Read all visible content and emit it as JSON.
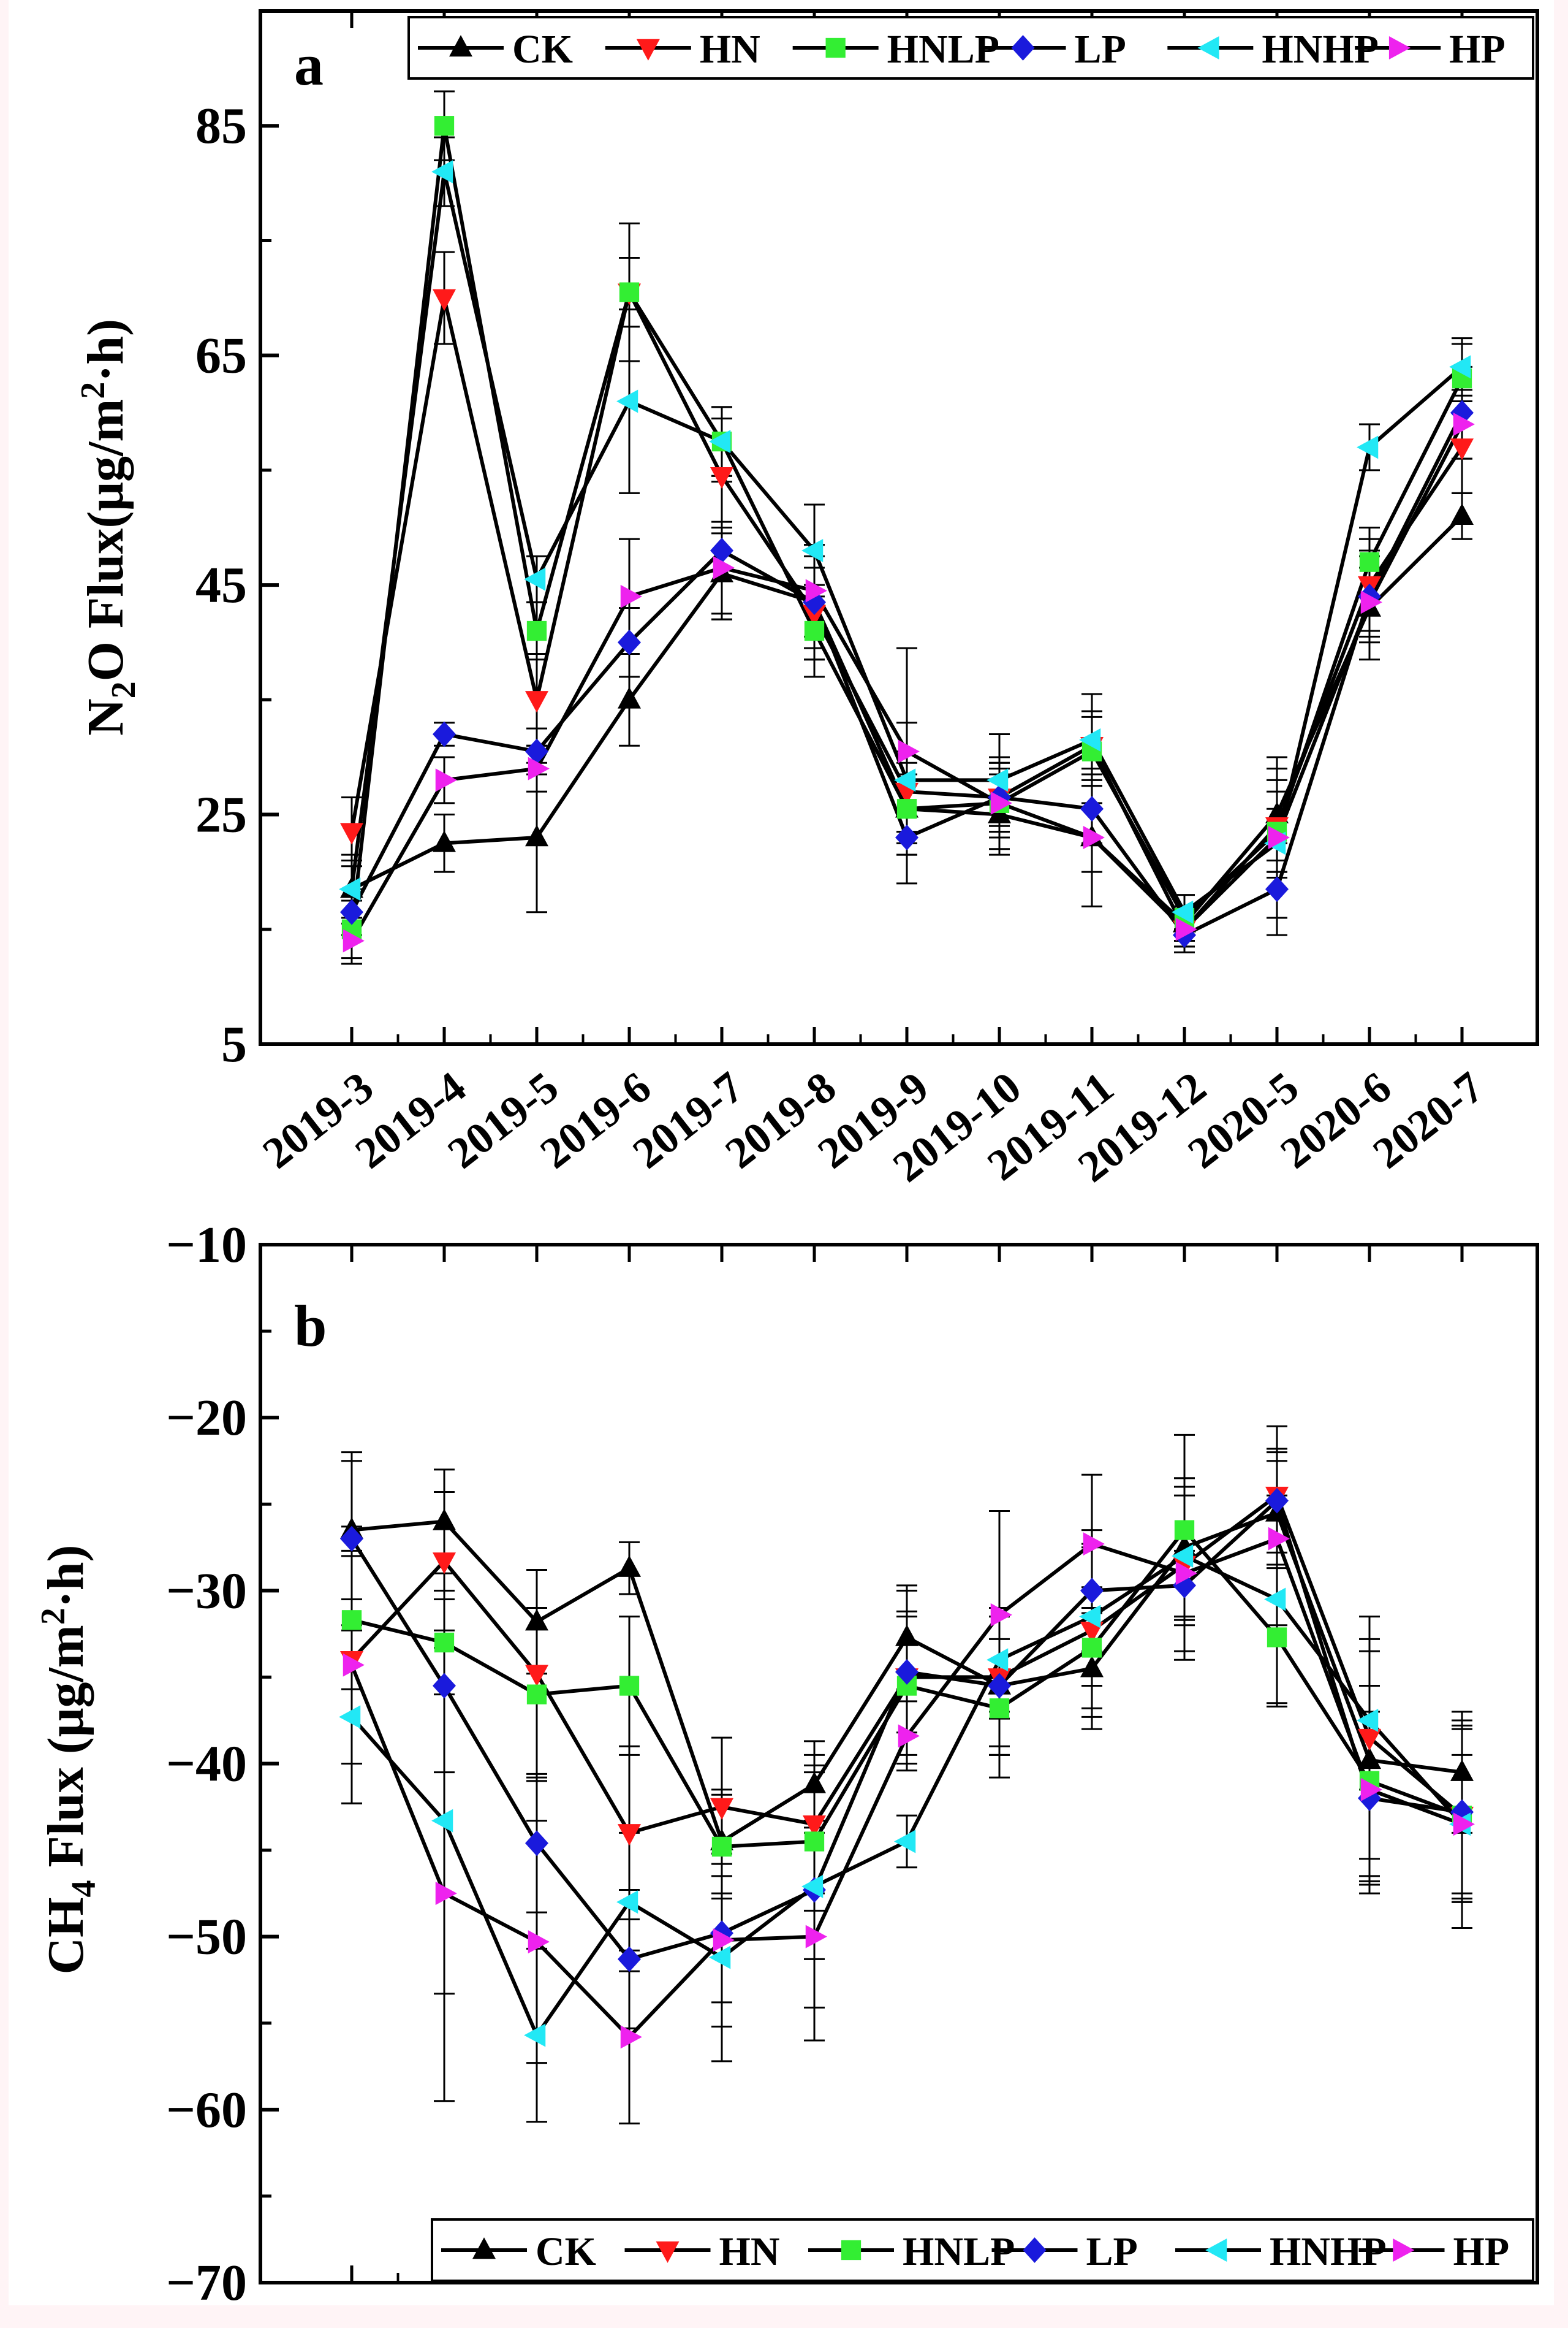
{
  "figure": {
    "panel_a_letter": "a",
    "panel_b_letter": "b"
  },
  "legend_labels": [
    "CK",
    "HN",
    "HNLP",
    "LP",
    "HNHP",
    "HP"
  ],
  "colors": {
    "CK": "#000000",
    "HN": "#ff1a1a",
    "HNLP": "#33ee33",
    "LP": "#1a1adc",
    "HNHP": "#22e8f5",
    "HP": "#ee22ee",
    "line": "#000000",
    "fringe": "#fff4f6"
  },
  "markers": {
    "CK": "triangle-up-icon",
    "HN": "triangle-down-icon",
    "HNLP": "square-icon",
    "LP": "diamond-icon",
    "HNHP": "triangle-left-icon",
    "HP": "triangle-right-icon"
  },
  "chart_data": [
    {
      "type": "line",
      "panel": "a",
      "title": "",
      "ylabel_main": "N",
      "ylabel_sub": "2",
      "ylabel_rest": "O Flux(μg/m",
      "ylabel_sup": "2",
      "ylabel_end": "·h)",
      "xlabel": "",
      "categories": [
        "2019-3",
        "2019-4",
        "2019-5",
        "2019-6",
        "2019-7",
        "2019-8",
        "2019-9",
        "2019-10",
        "2019-11",
        "2019-12",
        "2020-5",
        "2020-6",
        "2020-7"
      ],
      "ylim": [
        5,
        95
      ],
      "yticks": [
        5,
        25,
        45,
        65,
        85
      ],
      "ytick_labels": [
        "5",
        "25",
        "45",
        "65",
        "85"
      ],
      "legend_position": "top-right",
      "series": [
        {
          "name": "CK",
          "values": [
            18.5,
            22.5,
            23,
            35,
            46,
            43.5,
            25.5,
            25,
            23,
            15.5,
            25,
            43,
            51
          ],
          "err": [
            3,
            2.5,
            6.5,
            4,
            4,
            4,
            4,
            3.5,
            3,
            1.5,
            4,
            4.5,
            2
          ]
        },
        {
          "name": "HN",
          "values": [
            23.5,
            70,
            35,
            70.5,
            54.5,
            42.5,
            27,
            26.5,
            31,
            15,
            24,
            45,
            57
          ],
          "err": [
            3,
            4,
            4,
            6,
            5,
            4,
            3.5,
            3,
            3,
            1.5,
            4,
            4,
            4
          ]
        },
        {
          "name": "HNLP",
          "values": [
            15,
            85,
            41,
            70.5,
            57.5,
            41,
            25.5,
            26,
            30.5,
            16,
            23.5,
            47,
            63
          ],
          "err": [
            2.5,
            3,
            2.5,
            3,
            3,
            4,
            3,
            3,
            3,
            1,
            3.5,
            3,
            3
          ]
        },
        {
          "name": "LP",
          "values": [
            16.5,
            32,
            30.5,
            40,
            48,
            43.5,
            23,
            26.5,
            25.5,
            14.5,
            18.5,
            44,
            60
          ],
          "err": [
            2,
            1,
            2,
            3,
            6,
            5,
            4,
            3,
            3,
            1.5,
            4,
            4,
            4
          ]
        },
        {
          "name": "HNHP",
          "values": [
            18.5,
            81,
            45.5,
            61,
            57.5,
            48,
            28,
            28,
            31.5,
            16.5,
            22.5,
            57,
            64
          ],
          "err": [
            2.5,
            3,
            2,
            8,
            3,
            4,
            5,
            4,
            4,
            1.5,
            3,
            2,
            2.5
          ]
        },
        {
          "name": "HP",
          "values": [
            14,
            28,
            29,
            44,
            46.5,
            44.5,
            30.5,
            26,
            23,
            15,
            23,
            43.5,
            59
          ],
          "err": [
            2,
            2,
            2,
            5,
            4,
            4,
            9,
            4,
            6,
            1.5,
            7,
            3,
            3
          ]
        }
      ]
    },
    {
      "type": "line",
      "panel": "b",
      "title": "",
      "ylabel_main": "CH",
      "ylabel_sub": "4",
      "ylabel_rest": " Flux (μg/m",
      "ylabel_sup": "2",
      "ylabel_end": "·h)",
      "xlabel": "",
      "categories": [
        "2019-3",
        "2019-4",
        "2019-5",
        "2019-6",
        "2019-7",
        "2019-8",
        "2019-9",
        "2019-10",
        "2019-11",
        "2019-12",
        "2020-5",
        "2020-6",
        "2020-7"
      ],
      "ylim": [
        -70,
        -10
      ],
      "yticks": [
        -10,
        -20,
        -30,
        -40,
        -50,
        -60,
        -70
      ],
      "ytick_labels": [
        "−10",
        "−20",
        "−30",
        "−40",
        "−50",
        "−60",
        "−70"
      ],
      "legend_position": "bottom-right",
      "series": [
        {
          "name": "CK",
          "values": [
            -26.5,
            -26,
            -31.8,
            -28.7,
            -44.5,
            -41.2,
            -32.7,
            -35.5,
            -34.5,
            -27.5,
            -25.5,
            -39.8,
            -40.5
          ],
          "err": [
            4,
            3,
            3,
            1.5,
            3,
            2.5,
            3,
            4,
            3.5,
            4,
            3,
            7,
            3.5
          ]
        },
        {
          "name": "HN",
          "values": [
            -34,
            -28.3,
            -34.8,
            -44,
            -42.5,
            -43.5,
            -35,
            -35,
            -32.3,
            -28.5,
            -24.5,
            -38.5,
            -43
          ],
          "err": [
            6,
            4,
            6,
            5,
            4,
            4,
            5,
            4,
            5,
            5,
            4,
            7,
            5
          ]
        },
        {
          "name": "HNLP",
          "values": [
            -31.7,
            -33,
            -36,
            -35.5,
            -44.8,
            -44.5,
            -35.5,
            -36.8,
            -33.3,
            -26.5,
            -32.7,
            -41,
            -43
          ],
          "err": [
            4,
            3,
            5,
            4,
            3,
            4,
            4,
            4,
            3.5,
            5.5,
            4,
            5.5,
            5
          ]
        },
        {
          "name": "LP",
          "values": [
            -27,
            -35.5,
            -44.6,
            -51.3,
            -49.8,
            -47.3,
            -34.7,
            -35.5,
            -30,
            -29.7,
            -24.8,
            -42,
            -42.8
          ],
          "err": [
            5,
            5,
            4,
            4,
            4,
            4,
            3.5,
            4,
            3.5,
            2,
            3,
            5,
            5
          ]
        },
        {
          "name": "HNHP",
          "values": [
            -37.3,
            -43.3,
            -55.7,
            -48,
            -51.2,
            -47.1,
            -44.5,
            -34,
            -31.5,
            -28,
            -30.5,
            -37.5,
            -43.5
          ],
          "err": [
            5,
            10,
            5,
            4,
            6,
            7,
            1.5,
            3,
            4,
            3.5,
            6,
            4,
            4
          ]
        },
        {
          "name": "HP",
          "values": [
            -34.3,
            -47.5,
            -50.3,
            -55.8,
            -50.2,
            -50,
            -38.4,
            -31.4,
            -27.3,
            -29,
            -27,
            -41.5,
            -43.5
          ],
          "err": [
            8,
            12,
            7,
            5,
            5,
            6,
            2,
            6,
            4,
            5,
            5,
            6,
            6
          ]
        }
      ]
    }
  ]
}
